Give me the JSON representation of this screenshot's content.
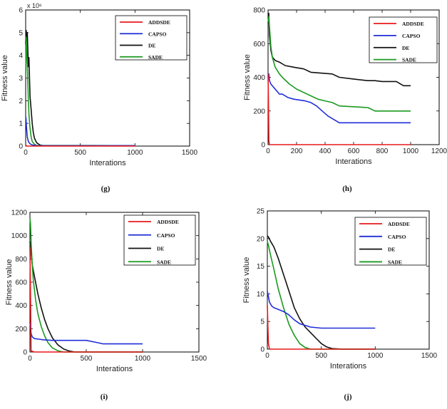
{
  "chart_data": [
    {
      "type": "line",
      "caption": "(g)",
      "xlabel": "Interations",
      "ylabel": "Fitness value",
      "xlim": [
        0,
        1500
      ],
      "ylim": [
        0,
        6
      ],
      "y_multiplier_label": "x 10⁶",
      "xticks": [
        0,
        500,
        1000,
        1500
      ],
      "yticks": [
        0,
        1,
        2,
        3,
        4,
        5,
        6
      ],
      "legend_position": "top-right",
      "series": [
        {
          "name": "ADDSDE",
          "color": "#e8191c",
          "x": [
            0,
            5,
            10,
            1000
          ],
          "y": [
            0.05,
            0.02,
            0,
            0
          ]
        },
        {
          "name": "CAPSO",
          "color": "#1f2ed8",
          "x": [
            0,
            3,
            8,
            15,
            25,
            40,
            60,
            100,
            1000
          ],
          "y": [
            1.3,
            1.2,
            0.8,
            0.4,
            0.2,
            0.1,
            0.05,
            0.02,
            0.02
          ]
        },
        {
          "name": "DE",
          "color": "#111111",
          "x": [
            0,
            5,
            10,
            15,
            20,
            25,
            30,
            35,
            40,
            50,
            60,
            70,
            80,
            100,
            130,
            160,
            1000
          ],
          "y": [
            4.5,
            5.1,
            4.6,
            5.0,
            4.2,
            3.5,
            3.9,
            3.0,
            2.2,
            1.6,
            1.0,
            0.6,
            0.35,
            0.15,
            0.05,
            0.02,
            0.02
          ]
        },
        {
          "name": "SADE",
          "color": "#1a9a1f",
          "x": [
            0,
            5,
            10,
            15,
            20,
            25,
            30,
            40,
            50,
            60,
            80,
            100,
            1000
          ],
          "y": [
            3.0,
            4.8,
            4.2,
            3.6,
            2.8,
            2.0,
            1.4,
            0.8,
            0.4,
            0.2,
            0.08,
            0.03,
            0.02
          ]
        }
      ]
    },
    {
      "type": "line",
      "caption": "(h)",
      "xlabel": "Interations",
      "ylabel": "Fitness value",
      "xlim": [
        0,
        1200
      ],
      "ylim": [
        0,
        800
      ],
      "xticks": [
        0,
        200,
        400,
        600,
        800,
        1000,
        1200
      ],
      "yticks": [
        0,
        200,
        400,
        600,
        800
      ],
      "legend_position": "top-right",
      "series": [
        {
          "name": "ADDSDE",
          "color": "#e8191c",
          "x": [
            0,
            3,
            6,
            10,
            1000
          ],
          "y": [
            420,
            250,
            20,
            0,
            0
          ]
        },
        {
          "name": "CAPSO",
          "color": "#1f2ed8",
          "x": [
            0,
            5,
            10,
            20,
            40,
            60,
            80,
            100,
            140,
            180,
            260,
            300,
            340,
            380,
            420,
            460,
            500,
            1000
          ],
          "y": [
            400,
            420,
            380,
            360,
            340,
            320,
            300,
            300,
            280,
            270,
            260,
            250,
            230,
            200,
            170,
            150,
            130,
            130
          ]
        },
        {
          "name": "DE",
          "color": "#111111",
          "x": [
            0,
            5,
            10,
            20,
            30,
            50,
            80,
            120,
            180,
            250,
            300,
            450,
            500,
            600,
            700,
            750,
            800,
            900,
            950,
            1000
          ],
          "y": [
            750,
            780,
            650,
            560,
            520,
            500,
            490,
            470,
            460,
            450,
            430,
            420,
            400,
            390,
            380,
            380,
            375,
            375,
            350,
            350
          ]
        },
        {
          "name": "SADE",
          "color": "#1a9a1f",
          "x": [
            0,
            5,
            10,
            20,
            30,
            50,
            80,
            100,
            150,
            200,
            250,
            300,
            350,
            400,
            450,
            500,
            700,
            750,
            1000
          ],
          "y": [
            730,
            760,
            700,
            580,
            520,
            460,
            420,
            400,
            360,
            330,
            310,
            290,
            270,
            260,
            250,
            230,
            220,
            200,
            200
          ]
        }
      ]
    },
    {
      "type": "line",
      "caption": "(i)",
      "xlabel": "Interations",
      "ylabel": "Fitness value",
      "xlim": [
        0,
        1500
      ],
      "ylim": [
        0,
        1200
      ],
      "xticks": [
        0,
        500,
        1000,
        1500
      ],
      "yticks": [
        0,
        200,
        400,
        600,
        800,
        1000,
        1200
      ],
      "legend_position": "top-right",
      "series": [
        {
          "name": "ADDSDE",
          "color": "#e8191c",
          "x": [
            0,
            5,
            10,
            40,
            1000
          ],
          "y": [
            900,
            500,
            10,
            0,
            0
          ]
        },
        {
          "name": "CAPSO",
          "color": "#1f2ed8",
          "x": [
            0,
            5,
            10,
            20,
            40,
            80,
            120,
            200,
            300,
            500,
            600,
            650,
            1000
          ],
          "y": [
            250,
            220,
            160,
            130,
            115,
            110,
            105,
            100,
            100,
            100,
            80,
            70,
            70
          ]
        },
        {
          "name": "DE",
          "color": "#111111",
          "x": [
            0,
            5,
            10,
            20,
            30,
            50,
            70,
            100,
            130,
            160,
            200,
            250,
            300,
            350,
            400,
            1000
          ],
          "y": [
            950,
            900,
            850,
            750,
            700,
            600,
            500,
            380,
            280,
            200,
            120,
            60,
            25,
            8,
            0,
            0
          ]
        },
        {
          "name": "SADE",
          "color": "#1a9a1f",
          "x": [
            0,
            5,
            10,
            20,
            30,
            50,
            70,
            100,
            130,
            160,
            200,
            250,
            300,
            1000
          ],
          "y": [
            1150,
            1100,
            950,
            750,
            620,
            450,
            330,
            220,
            140,
            80,
            35,
            10,
            0,
            0
          ]
        }
      ]
    },
    {
      "type": "line",
      "caption": "(j)",
      "xlabel": "Interations",
      "ylabel": "Fitness value",
      "xlim": [
        0,
        1500
      ],
      "ylim": [
        0,
        25
      ],
      "xticks": [
        0,
        500,
        1000,
        1500
      ],
      "yticks": [
        0,
        5,
        10,
        15,
        20,
        25
      ],
      "legend_position": "top-right",
      "series": [
        {
          "name": "ADDSDE",
          "color": "#e8191c",
          "x": [
            0,
            5,
            10,
            20,
            1000
          ],
          "y": [
            8,
            4,
            1,
            0,
            0
          ]
        },
        {
          "name": "CAPSO",
          "color": "#1f2ed8",
          "x": [
            0,
            10,
            20,
            40,
            60,
            100,
            150,
            200,
            250,
            300,
            400,
            500,
            1000
          ],
          "y": [
            10.5,
            9.5,
            8.5,
            7.8,
            7.5,
            7.2,
            6.8,
            6.2,
            5.3,
            4.6,
            4.0,
            3.8,
            3.8
          ]
        },
        {
          "name": "DE",
          "color": "#111111",
          "x": [
            0,
            10,
            30,
            60,
            100,
            150,
            200,
            250,
            300,
            350,
            400,
            450,
            500,
            550,
            600,
            700,
            1000
          ],
          "y": [
            20.5,
            20.3,
            19.5,
            18.5,
            16.5,
            13.5,
            10.5,
            7.5,
            5.5,
            4.0,
            3.0,
            2.0,
            1.0,
            0.4,
            0.1,
            0,
            0
          ]
        },
        {
          "name": "SADE",
          "color": "#1a9a1f",
          "x": [
            0,
            10,
            30,
            60,
            100,
            150,
            200,
            250,
            300,
            350,
            400,
            1000
          ],
          "y": [
            19.5,
            18.8,
            17.0,
            14.5,
            11.0,
            7.5,
            4.5,
            2.5,
            1.0,
            0.3,
            0,
            0
          ]
        }
      ]
    }
  ]
}
